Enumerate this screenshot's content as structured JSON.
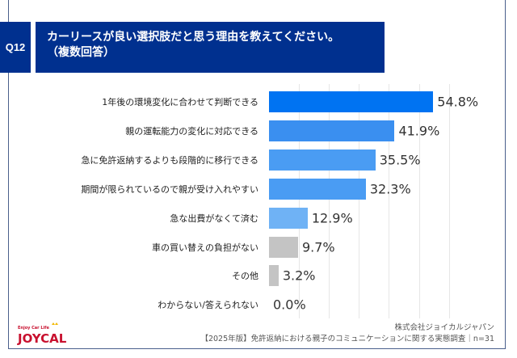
{
  "question_id": "Q12",
  "title_line1": "カーリースが良い選択肢だと思う理由を教えてください。",
  "title_line2": "（複数回答）",
  "source_company": "株式会社ジョイカルジャパン",
  "source_survey": "【2025年版】免許返納における親子のコミュニケーションに関する実態調査｜n=31",
  "logo_text": "Enjoy Car Life JOYCAL",
  "chart_data": {
    "type": "bar",
    "orientation": "horizontal",
    "categories": [
      "1年後の環境変化に合わせて判断できる",
      "親の運転能力の変化に対応できる",
      "急に免許返納するよりも段階的に移行できる",
      "期間が限られているので親が受け入れやすい",
      "急な出費がなくて済む",
      "車の買い替えの負担がない",
      "その他",
      "わからない/答えられない"
    ],
    "values": [
      54.8,
      41.9,
      35.5,
      32.3,
      12.9,
      9.7,
      3.2,
      0.0
    ],
    "value_labels": [
      "54.8%",
      "41.9%",
      "35.5%",
      "32.3%",
      "12.9%",
      "9.7%",
      "3.2%",
      "0.0%"
    ],
    "colors": [
      "#0073f2",
      "#3a8ff0",
      "#4a9cf3",
      "#4a9cf3",
      "#6fb2f5",
      "#c4c4c4",
      "#c4c4c4",
      "#c4c4c4"
    ],
    "xlim": [
      0,
      60
    ],
    "grid": true
  }
}
